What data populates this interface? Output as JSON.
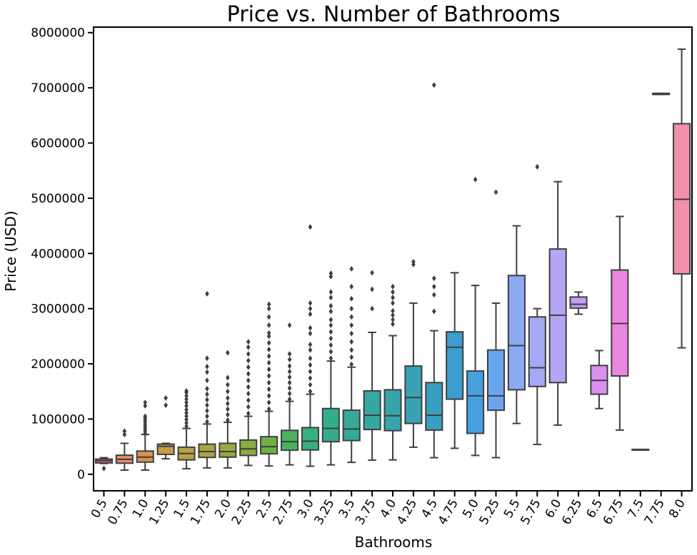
{
  "chart_data": {
    "type": "box",
    "title": "Price vs. Number of Bathrooms",
    "xlabel": "Bathrooms",
    "ylabel": "Price (USD)",
    "ylim": [
      -300000,
      8100000
    ],
    "y_ticks": [
      0,
      1000000,
      2000000,
      3000000,
      4000000,
      5000000,
      6000000,
      7000000,
      8000000
    ],
    "y_tick_labels": [
      "0",
      "1000000",
      "2000000",
      "3000000",
      "4000000",
      "5000000",
      "6000000",
      "7000000",
      "8000000"
    ],
    "grid": false,
    "categories": [
      "0.5",
      "0.75",
      "1.0",
      "1.25",
      "1.5",
      "1.75",
      "2.0",
      "2.25",
      "2.5",
      "2.75",
      "3.0",
      "3.25",
      "3.5",
      "3.75",
      "4.0",
      "4.25",
      "4.5",
      "4.75",
      "5.0",
      "5.25",
      "5.5",
      "5.75",
      "6.0",
      "6.25",
      "6.5",
      "6.75",
      "7.5",
      "7.75",
      "8.0"
    ],
    "colors": [
      "#f0758b",
      "#e88c6a",
      "#d8944f",
      "#c89b43",
      "#b9a042",
      "#aaa442",
      "#9ba842",
      "#8aac43",
      "#6fb143",
      "#4ab25f",
      "#36b17e",
      "#34ad8d",
      "#35aa98",
      "#36a7a1",
      "#37a5ab",
      "#38a3b5",
      "#3aa0c1",
      "#3c9dcf",
      "#46a0de",
      "#6aa5f0",
      "#8aaaf4",
      "#a5a8f4",
      "#b6a4f4",
      "#c89df4",
      "#db90f1",
      "#ea87e0",
      "#ee86cf",
      "#f18abd",
      "#f28fa9"
    ],
    "boxes": [
      {
        "q1": 205000,
        "median": 245000,
        "q3": 275000,
        "lower": 195000,
        "upper": 300000,
        "fliers": [
          105000
        ]
      },
      {
        "q1": 200000,
        "median": 270000,
        "q3": 345000,
        "lower": 75000,
        "upper": 560000,
        "fliers": [
          720000,
          780000
        ]
      },
      {
        "q1": 220000,
        "median": 310000,
        "q3": 420000,
        "lower": 75000,
        "upper": 720000,
        "fliers": [
          740000,
          780000,
          820000,
          860000,
          900000,
          940000,
          980000,
          1020000,
          1050000,
          1240000,
          1300000
        ]
      },
      {
        "q1": 360000,
        "median": 505000,
        "q3": 545000,
        "lower": 280000,
        "upper": 560000,
        "fliers": [
          1250000,
          1380000
        ]
      },
      {
        "q1": 260000,
        "median": 375000,
        "q3": 490000,
        "lower": 100000,
        "upper": 830000,
        "fliers": [
          870000,
          930000,
          990000,
          1050000,
          1110000,
          1170000,
          1240000,
          1300000,
          1360000,
          1420000,
          1480000,
          1510000
        ]
      },
      {
        "q1": 305000,
        "median": 410000,
        "q3": 545000,
        "lower": 115000,
        "upper": 910000,
        "fliers": [
          950000,
          1050000,
          1150000,
          1250000,
          1350000,
          1450000,
          1550000,
          1700000,
          1850000,
          1950000,
          2100000,
          3270000
        ]
      },
      {
        "q1": 310000,
        "median": 410000,
        "q3": 560000,
        "lower": 115000,
        "upper": 940000,
        "fliers": [
          980000,
          1080000,
          1180000,
          1280000,
          1380000,
          1500000,
          1620000,
          1750000,
          2200000
        ]
      },
      {
        "q1": 340000,
        "median": 460000,
        "q3": 620000,
        "lower": 160000,
        "upper": 1050000,
        "fliers": [
          1100000,
          1220000,
          1340000,
          1460000,
          1580000,
          1700000,
          1820000,
          1940000,
          2060000,
          2180000,
          2300000,
          2400000
        ]
      },
      {
        "q1": 370000,
        "median": 500000,
        "q3": 680000,
        "lower": 150000,
        "upper": 1140000,
        "fliers": [
          1180000,
          1300000,
          1420000,
          1540000,
          1660000,
          1780000,
          1900000,
          2020000,
          2140000,
          2260000,
          2380000,
          2500000,
          2560000,
          2700000,
          2850000,
          3000000,
          3080000
        ]
      },
      {
        "q1": 435000,
        "median": 590000,
        "q3": 795000,
        "lower": 170000,
        "upper": 1320000,
        "fliers": [
          1360000,
          1460000,
          1560000,
          1660000,
          1760000,
          1860000,
          1960000,
          2080000,
          2180000,
          2700000
        ]
      },
      {
        "q1": 440000,
        "median": 600000,
        "q3": 845000,
        "lower": 145000,
        "upper": 1450000,
        "fliers": [
          1500000,
          1620000,
          1740000,
          1860000,
          1980000,
          2100000,
          2250000,
          2350000,
          2550000,
          2650000,
          2900000,
          3000000,
          3100000,
          4480000
        ]
      },
      {
        "q1": 590000,
        "median": 830000,
        "q3": 1190000,
        "lower": 170000,
        "upper": 2050000,
        "fliers": [
          2100000,
          2220000,
          2340000,
          2460000,
          2580000,
          2700000,
          2800000,
          2950000,
          3050000,
          3200000,
          3300000,
          3580000,
          3640000
        ]
      },
      {
        "q1": 610000,
        "median": 820000,
        "q3": 1160000,
        "lower": 215000,
        "upper": 1940000,
        "fliers": [
          1990000,
          2120000,
          2250000,
          2400000,
          2550000,
          2700000,
          2850000,
          3000000,
          3180000,
          3400000,
          3720000
        ]
      },
      {
        "q1": 810000,
        "median": 1070000,
        "q3": 1510000,
        "lower": 255000,
        "upper": 2570000,
        "fliers": [
          3000000,
          3350000,
          3650000
        ]
      },
      {
        "q1": 790000,
        "median": 1060000,
        "q3": 1530000,
        "lower": 260000,
        "upper": 2510000,
        "fliers": [
          2720000,
          2800000,
          2880000,
          2960000,
          3100000,
          3200000,
          3300000,
          3400000
        ]
      },
      {
        "q1": 920000,
        "median": 1390000,
        "q3": 1960000,
        "lower": 490000,
        "upper": 3100000,
        "fliers": [
          3800000,
          3850000
        ]
      },
      {
        "q1": 800000,
        "median": 1070000,
        "q3": 1660000,
        "lower": 300000,
        "upper": 2600000,
        "fliers": [
          2950000,
          3250000,
          3400000,
          3550000,
          7050000
        ]
      },
      {
        "q1": 1360000,
        "median": 2300000,
        "q3": 2580000,
        "lower": 470000,
        "upper": 3650000,
        "fliers": []
      },
      {
        "q1": 740000,
        "median": 1420000,
        "q3": 1870000,
        "lower": 340000,
        "upper": 3420000,
        "fliers": [
          5340000
        ]
      },
      {
        "q1": 1160000,
        "median": 1420000,
        "q3": 2250000,
        "lower": 300000,
        "upper": 3100000,
        "fliers": [
          5110000
        ]
      },
      {
        "q1": 1530000,
        "median": 2330000,
        "q3": 3600000,
        "lower": 920000,
        "upper": 4500000,
        "fliers": []
      },
      {
        "q1": 1590000,
        "median": 1930000,
        "q3": 2850000,
        "lower": 540000,
        "upper": 3000000,
        "fliers": [
          5570000
        ]
      },
      {
        "q1": 1660000,
        "median": 2880000,
        "q3": 4080000,
        "lower": 890000,
        "upper": 5300000,
        "fliers": []
      },
      {
        "q1": 3010000,
        "median": 3080000,
        "q3": 3210000,
        "lower": 2900000,
        "upper": 3300000,
        "fliers": []
      },
      {
        "q1": 1450000,
        "median": 1700000,
        "q3": 1970000,
        "lower": 1190000,
        "upper": 2240000,
        "fliers": []
      },
      {
        "q1": 1780000,
        "median": 2730000,
        "q3": 3700000,
        "lower": 800000,
        "upper": 4670000,
        "fliers": []
      },
      {
        "q1": 450000,
        "median": 450000,
        "q3": 450000,
        "lower": 450000,
        "upper": 450000,
        "fliers": []
      },
      {
        "q1": 6880000,
        "median": 6890000,
        "q3": 6900000,
        "lower": 6880000,
        "upper": 6900000,
        "fliers": []
      },
      {
        "q1": 3630000,
        "median": 4980000,
        "q3": 6350000,
        "lower": 2290000,
        "upper": 7700000,
        "fliers": []
      }
    ]
  }
}
